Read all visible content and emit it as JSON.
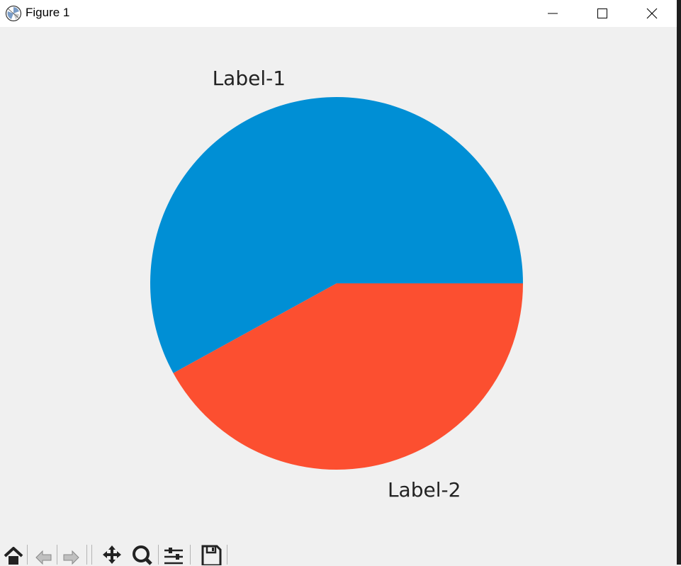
{
  "window": {
    "title": "Figure 1",
    "icon": "matplotlib-icon",
    "controls": [
      "minimize-icon",
      "maximize-icon",
      "close-icon"
    ]
  },
  "chart_data": {
    "type": "pie",
    "labels": [
      "Label-1",
      "Label-2"
    ],
    "values": [
      58,
      42
    ],
    "colors": [
      "#008fd5",
      "#fc4f30"
    ],
    "startangle": 0,
    "counterclock": true
  },
  "toolbar": {
    "tools": [
      "home-icon",
      "back-icon",
      "forward-icon",
      "pan-icon",
      "zoom-icon",
      "configure-subplots-icon",
      "save-icon"
    ]
  }
}
